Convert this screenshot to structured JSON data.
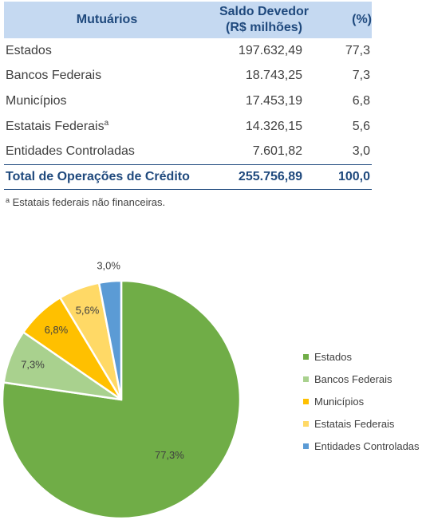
{
  "table": {
    "header": {
      "name": "Mutuários",
      "value_line1": "Saldo Devedor",
      "value_line2": "(R$ milhões)",
      "pct": "(%)"
    },
    "rows": [
      {
        "name": "Estados",
        "note": "",
        "value": "197.632,49",
        "pct": "77,3"
      },
      {
        "name": "Bancos Federais",
        "note": "",
        "value": "18.743,25",
        "pct": "7,3"
      },
      {
        "name": "Municípios",
        "note": "",
        "value": "17.453,19",
        "pct": "6,8"
      },
      {
        "name": "Estatais Federais",
        "note": "a",
        "value": "14.326,15",
        "pct": "5,6"
      },
      {
        "name": "Entidades Controladas",
        "note": "",
        "value": "7.601,82",
        "pct": "3,0"
      }
    ],
    "total": {
      "name": "Total de Operações de Crédito",
      "value": "255.756,89",
      "pct": "100,0"
    }
  },
  "footnote": {
    "mark": "a",
    "text": " Estatais federais não financeiras."
  },
  "chart_data": {
    "type": "pie",
    "start": "12 o'clock, clockwise",
    "categories": [
      "Estados",
      "Bancos Federais",
      "Municípios",
      "Estatais Federais",
      "Entidades Controladas"
    ],
    "values": [
      77.3,
      7.3,
      6.8,
      5.6,
      3.0
    ],
    "data_labels": [
      "77,3%",
      "7,3%",
      "6,8%",
      "5,6%",
      "3,0%"
    ],
    "colors": [
      "#70ad47",
      "#a9d18e",
      "#ffc000",
      "#ffd966",
      "#5b9bd5"
    ],
    "legend": [
      "Estados",
      "Bancos Federais",
      "Municípios",
      "Estatais Federais",
      "Entidades Controladas"
    ],
    "legend_position": "right"
  }
}
